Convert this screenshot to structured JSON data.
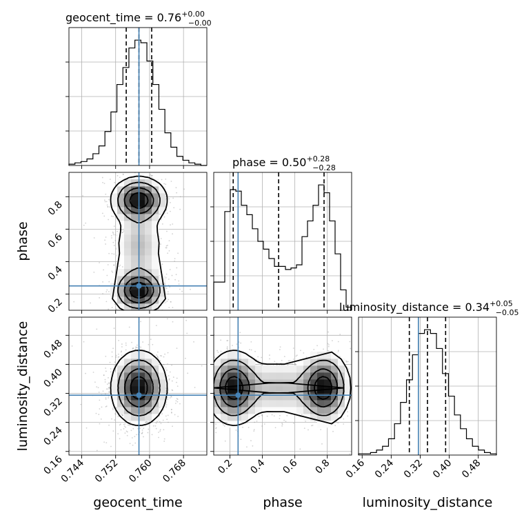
{
  "chart_data": {
    "type": "corner",
    "parameters": [
      {
        "name": "geocent_time",
        "title_prefix": "geocent_time = 0.76",
        "title_sup": "+0.00",
        "title_sub": "−0.00",
        "median": 0.7575,
        "quantiles": [
          0.7545,
          0.7575,
          0.7605
        ],
        "truth": 0.7575,
        "axis_label": "geocent_time",
        "ticks": [
          0.744,
          0.752,
          0.76,
          0.768
        ],
        "tick_labels": [
          "0.744",
          "0.752",
          "0.760",
          "0.768"
        ],
        "range": [
          0.741,
          0.7735
        ],
        "hist_edges": [
          0.741,
          0.7735
        ],
        "hist_counts": [
          1,
          2,
          3,
          5,
          9,
          15,
          26,
          41,
          62,
          75,
          90,
          96,
          94,
          80,
          62,
          43,
          25,
          14,
          7,
          4,
          2,
          1,
          0
        ]
      },
      {
        "name": "phase",
        "title_prefix": "phase = 0.50",
        "title_sup": "+0.28",
        "title_sub": "−0.28",
        "median": 0.5,
        "quantiles": [
          0.22,
          0.5,
          0.78
        ],
        "truth": 0.25,
        "axis_label": "phase",
        "ticks": [
          0.2,
          0.4,
          0.6,
          0.8
        ],
        "tick_labels": [
          "0.2",
          "0.4",
          "0.6",
          "0.8"
        ],
        "range": [
          0.1,
          0.95
        ],
        "hist_edges": [
          0.1,
          0.95
        ],
        "hist_counts": [
          18,
          18,
          63,
          77,
          76,
          67,
          61,
          52,
          44,
          39,
          33,
          28,
          28,
          26,
          27,
          29,
          47,
          57,
          67,
          80,
          75,
          57,
          36,
          13,
          2
        ]
      },
      {
        "name": "luminosity_distance",
        "title_prefix": "luminosity_distance = 0.34",
        "title_sup": "+0.05",
        "title_sub": "−0.05",
        "median": 0.34,
        "quantiles": [
          0.29,
          0.34,
          0.39
        ],
        "truth": 0.315,
        "axis_label": "luminosity_distance",
        "ticks": [
          0.16,
          0.24,
          0.32,
          0.4,
          0.48
        ],
        "tick_labels": [
          "0.16",
          "0.24",
          "0.32",
          "0.40",
          "0.48"
        ],
        "range": [
          0.15,
          0.53
        ],
        "hist_edges": [
          0.15,
          0.53
        ],
        "hist_counts": [
          1,
          1,
          2,
          4,
          7,
          13,
          25,
          42,
          60,
          80,
          97,
          100,
          97,
          85,
          65,
          47,
          32,
          21,
          13,
          7,
          4,
          2,
          1
        ]
      }
    ],
    "truth_color": "#4682b4",
    "grid": true
  }
}
